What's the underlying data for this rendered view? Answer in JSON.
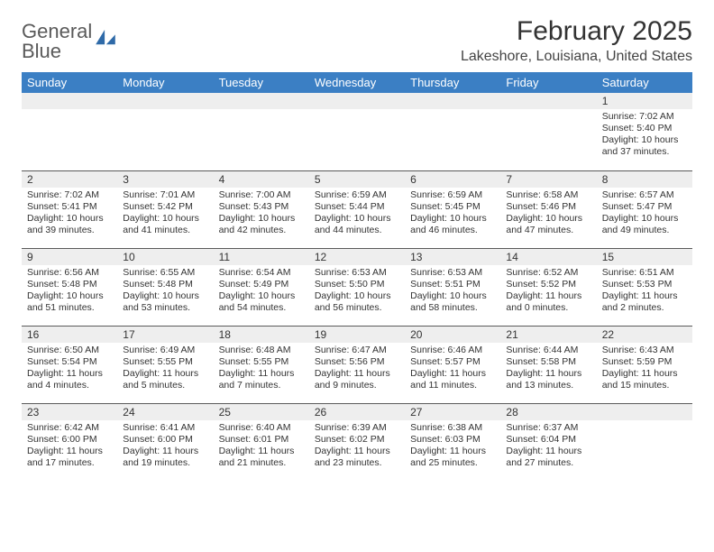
{
  "brand": {
    "name_gray": "General",
    "name_blue": "Blue"
  },
  "title": "February 2025",
  "location": "Lakeshore, Louisiana, United States",
  "colors": {
    "header_bg": "#3b7fc4",
    "header_text": "#ffffff",
    "daynum_bg": "#eeeeee",
    "rule": "#5a5a5a",
    "text": "#333333"
  },
  "day_names": [
    "Sunday",
    "Monday",
    "Tuesday",
    "Wednesday",
    "Thursday",
    "Friday",
    "Saturday"
  ],
  "weeks": [
    [
      null,
      null,
      null,
      null,
      null,
      null,
      {
        "n": "1",
        "sunrise": "7:02 AM",
        "sunset": "5:40 PM",
        "daylight": "10 hours and 37 minutes."
      }
    ],
    [
      {
        "n": "2",
        "sunrise": "7:02 AM",
        "sunset": "5:41 PM",
        "daylight": "10 hours and 39 minutes."
      },
      {
        "n": "3",
        "sunrise": "7:01 AM",
        "sunset": "5:42 PM",
        "daylight": "10 hours and 41 minutes."
      },
      {
        "n": "4",
        "sunrise": "7:00 AM",
        "sunset": "5:43 PM",
        "daylight": "10 hours and 42 minutes."
      },
      {
        "n": "5",
        "sunrise": "6:59 AM",
        "sunset": "5:44 PM",
        "daylight": "10 hours and 44 minutes."
      },
      {
        "n": "6",
        "sunrise": "6:59 AM",
        "sunset": "5:45 PM",
        "daylight": "10 hours and 46 minutes."
      },
      {
        "n": "7",
        "sunrise": "6:58 AM",
        "sunset": "5:46 PM",
        "daylight": "10 hours and 47 minutes."
      },
      {
        "n": "8",
        "sunrise": "6:57 AM",
        "sunset": "5:47 PM",
        "daylight": "10 hours and 49 minutes."
      }
    ],
    [
      {
        "n": "9",
        "sunrise": "6:56 AM",
        "sunset": "5:48 PM",
        "daylight": "10 hours and 51 minutes."
      },
      {
        "n": "10",
        "sunrise": "6:55 AM",
        "sunset": "5:48 PM",
        "daylight": "10 hours and 53 minutes."
      },
      {
        "n": "11",
        "sunrise": "6:54 AM",
        "sunset": "5:49 PM",
        "daylight": "10 hours and 54 minutes."
      },
      {
        "n": "12",
        "sunrise": "6:53 AM",
        "sunset": "5:50 PM",
        "daylight": "10 hours and 56 minutes."
      },
      {
        "n": "13",
        "sunrise": "6:53 AM",
        "sunset": "5:51 PM",
        "daylight": "10 hours and 58 minutes."
      },
      {
        "n": "14",
        "sunrise": "6:52 AM",
        "sunset": "5:52 PM",
        "daylight": "11 hours and 0 minutes."
      },
      {
        "n": "15",
        "sunrise": "6:51 AM",
        "sunset": "5:53 PM",
        "daylight": "11 hours and 2 minutes."
      }
    ],
    [
      {
        "n": "16",
        "sunrise": "6:50 AM",
        "sunset": "5:54 PM",
        "daylight": "11 hours and 4 minutes."
      },
      {
        "n": "17",
        "sunrise": "6:49 AM",
        "sunset": "5:55 PM",
        "daylight": "11 hours and 5 minutes."
      },
      {
        "n": "18",
        "sunrise": "6:48 AM",
        "sunset": "5:55 PM",
        "daylight": "11 hours and 7 minutes."
      },
      {
        "n": "19",
        "sunrise": "6:47 AM",
        "sunset": "5:56 PM",
        "daylight": "11 hours and 9 minutes."
      },
      {
        "n": "20",
        "sunrise": "6:46 AM",
        "sunset": "5:57 PM",
        "daylight": "11 hours and 11 minutes."
      },
      {
        "n": "21",
        "sunrise": "6:44 AM",
        "sunset": "5:58 PM",
        "daylight": "11 hours and 13 minutes."
      },
      {
        "n": "22",
        "sunrise": "6:43 AM",
        "sunset": "5:59 PM",
        "daylight": "11 hours and 15 minutes."
      }
    ],
    [
      {
        "n": "23",
        "sunrise": "6:42 AM",
        "sunset": "6:00 PM",
        "daylight": "11 hours and 17 minutes."
      },
      {
        "n": "24",
        "sunrise": "6:41 AM",
        "sunset": "6:00 PM",
        "daylight": "11 hours and 19 minutes."
      },
      {
        "n": "25",
        "sunrise": "6:40 AM",
        "sunset": "6:01 PM",
        "daylight": "11 hours and 21 minutes."
      },
      {
        "n": "26",
        "sunrise": "6:39 AM",
        "sunset": "6:02 PM",
        "daylight": "11 hours and 23 minutes."
      },
      {
        "n": "27",
        "sunrise": "6:38 AM",
        "sunset": "6:03 PM",
        "daylight": "11 hours and 25 minutes."
      },
      {
        "n": "28",
        "sunrise": "6:37 AM",
        "sunset": "6:04 PM",
        "daylight": "11 hours and 27 minutes."
      },
      null
    ]
  ],
  "labels": {
    "sunrise": "Sunrise:",
    "sunset": "Sunset:",
    "daylight": "Daylight:"
  }
}
